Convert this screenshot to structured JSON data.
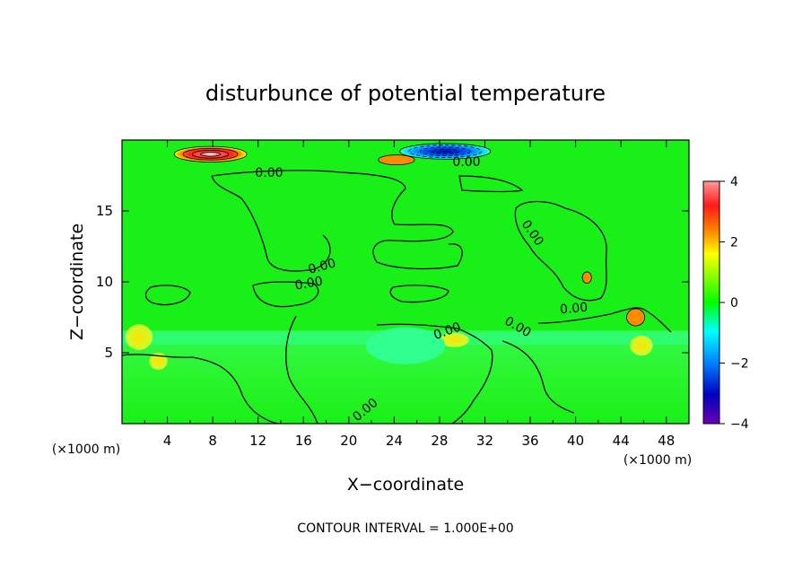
{
  "chart_data": {
    "type": "heatmap",
    "title": "disturbunce of potential temperature",
    "xlabel": "X−coordinate",
    "ylabel": "Z−coordinate",
    "x_unit_left": "(×1000 m)",
    "x_unit_right": "(×1000 m)",
    "xlim": [
      0,
      50
    ],
    "ylim": [
      0,
      20
    ],
    "x_ticks": [
      4,
      8,
      12,
      16,
      20,
      24,
      28,
      32,
      36,
      40,
      44,
      48
    ],
    "y_ticks": [
      5,
      10,
      15
    ],
    "colorbar": {
      "range": [
        -4,
        4
      ],
      "ticks": [
        4,
        2,
        0,
        -2,
        -4
      ],
      "colors": [
        "#ff9a9a",
        "#ff1a1a",
        "#ff7f00",
        "#ffff00",
        "#00ff00",
        "#00ffff",
        "#0080ff",
        "#0000c0",
        "#6a00b0"
      ]
    },
    "contour_labels": [
      "0.00",
      "0.00",
      "0.00",
      "0.00",
      "0.00",
      "0.00",
      "0.00",
      "0.00",
      "0.00"
    ],
    "footer": "CONTOUR INTERVAL = 1.000E+00",
    "features": [
      {
        "kind": "warm",
        "x": 7.8,
        "z": 19.0,
        "value": 4
      },
      {
        "kind": "warm",
        "x": 24.2,
        "z": 18.6,
        "value": 2
      },
      {
        "kind": "cold",
        "x": 28.5,
        "z": 19.2,
        "value": -3.5
      },
      {
        "kind": "warm",
        "x": 1.5,
        "z": 6.1,
        "value": 1.5
      },
      {
        "kind": "warm",
        "x": 3.2,
        "z": 4.4,
        "value": 1.2
      },
      {
        "kind": "warm",
        "x": 29.3,
        "z": 5.9,
        "value": 1.0
      },
      {
        "kind": "warm",
        "x": 45.8,
        "z": 5.5,
        "value": 1.0
      },
      {
        "kind": "warm",
        "x": 45.3,
        "z": 7.5,
        "value": 2.5
      },
      {
        "kind": "warm",
        "x": 41.0,
        "z": 10.3,
        "value": 2.5
      },
      {
        "kind": "cold",
        "x": 25.0,
        "z": 5.5,
        "value": -0.3
      }
    ]
  }
}
